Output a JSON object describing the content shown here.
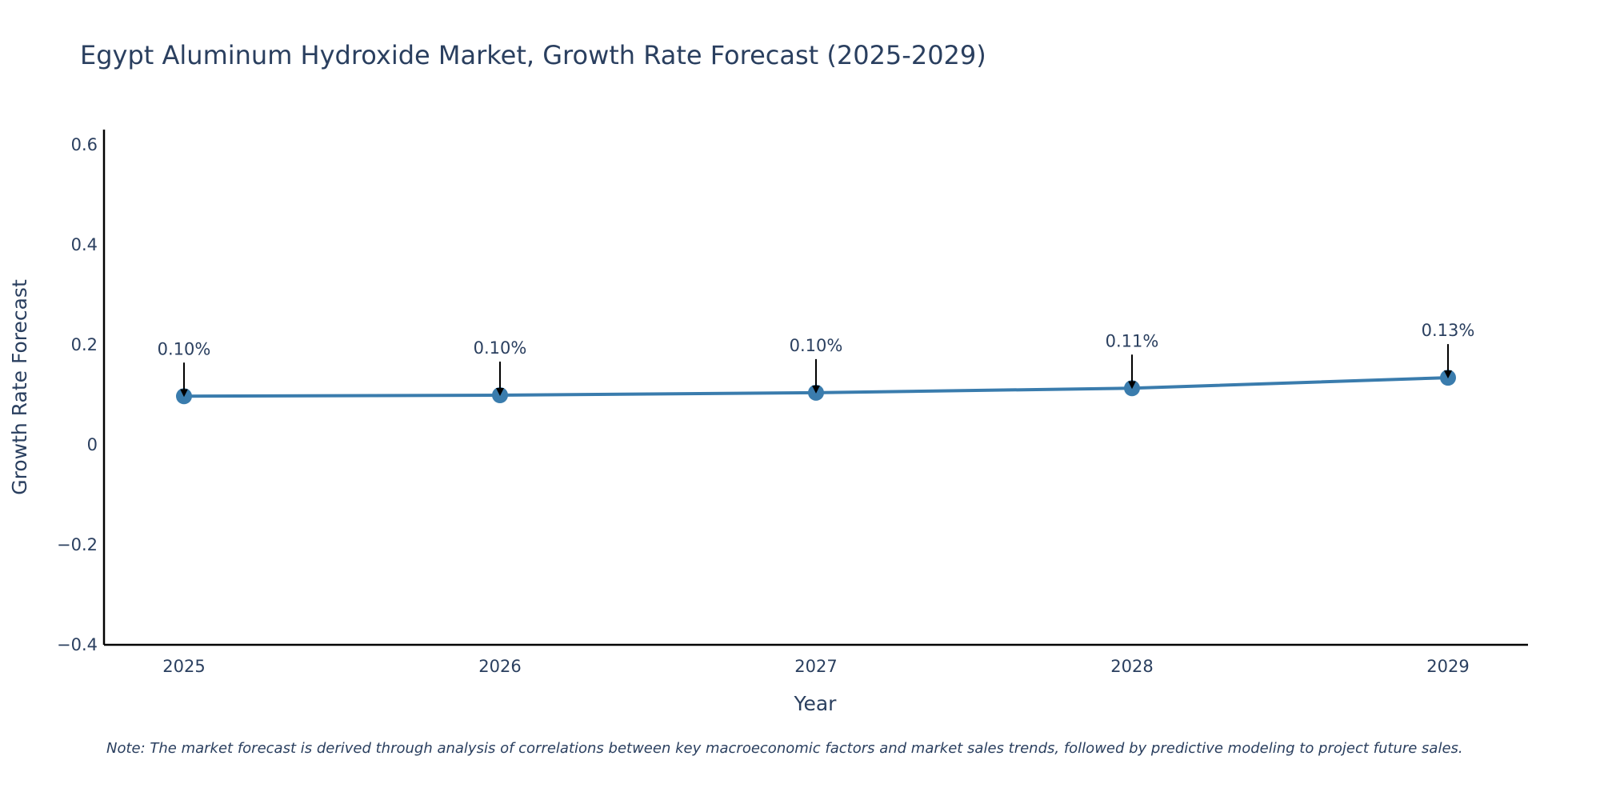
{
  "colors": {
    "line": "#3a7cad",
    "marker": "#3a7cad",
    "text": "#2a3f5f",
    "axis": "#000000",
    "arrow": "#000000",
    "background": "#ffffff"
  },
  "chart_data": {
    "type": "line",
    "title": "Egypt Aluminum Hydroxide Market, Growth Rate Forecast (2025-2029)",
    "xlabel": "Year",
    "ylabel": "Growth Rate Forecast",
    "x": [
      "2025",
      "2026",
      "2027",
      "2028",
      "2029"
    ],
    "series": [
      {
        "name": "Growth Rate Forecast",
        "values": [
          0.097,
          0.099,
          0.104,
          0.113,
          0.134
        ],
        "labels": [
          "0.10%",
          "0.10%",
          "0.10%",
          "0.11%",
          "0.13%"
        ]
      }
    ],
    "ylim": [
      -0.4,
      0.63
    ],
    "yticks": [
      -0.4,
      -0.2,
      0,
      0.2,
      0.4,
      0.6
    ],
    "ytick_labels": [
      "−0.4",
      "−0.2",
      "0",
      "0.2",
      "0.4",
      "0.6"
    ],
    "grid": false,
    "legend": "none",
    "note": "Note: The market forecast is derived through analysis of correlations between key macroeconomic factors and market sales trends, followed by predictive modeling to project future sales."
  }
}
